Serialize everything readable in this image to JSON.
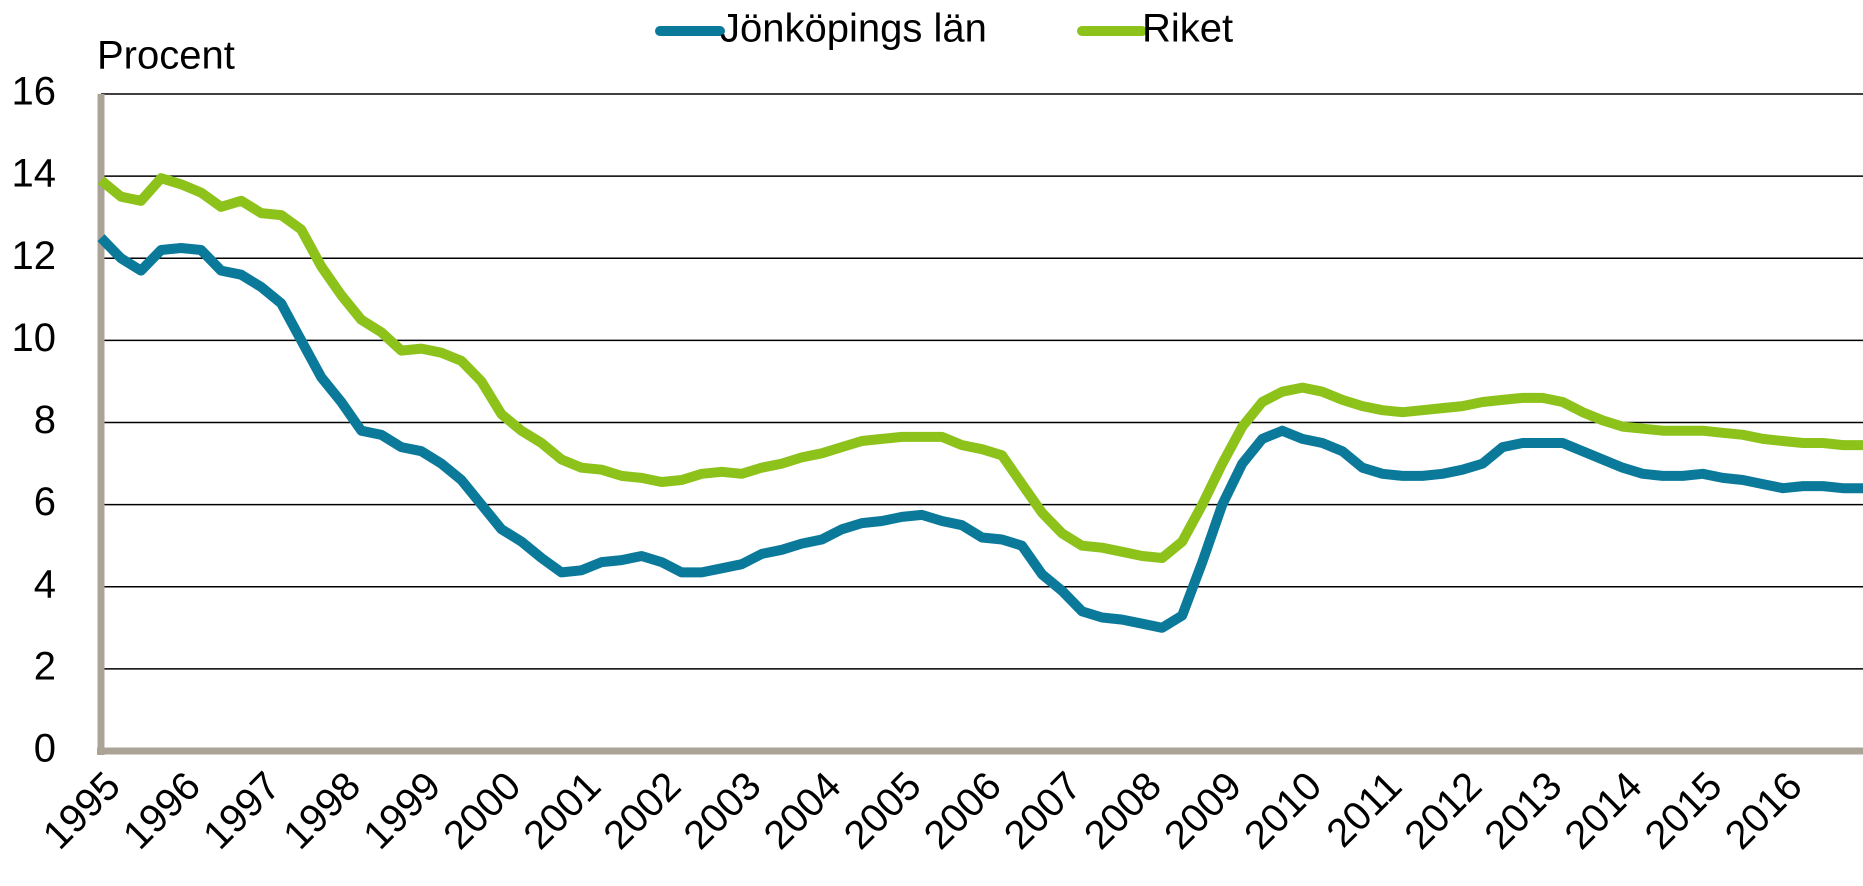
{
  "chart_data": {
    "type": "line",
    "ylabel": "Procent",
    "x": [
      1995,
      1995.25,
      1995.5,
      1995.75,
      1996,
      1996.25,
      1996.5,
      1996.75,
      1997,
      1997.25,
      1997.5,
      1997.75,
      1998,
      1998.25,
      1998.5,
      1998.75,
      1999,
      1999.25,
      1999.5,
      1999.75,
      2000,
      2000.25,
      2000.5,
      2000.75,
      2001,
      2001.25,
      2001.5,
      2001.75,
      2002,
      2002.25,
      2002.5,
      2002.75,
      2003,
      2003.25,
      2003.5,
      2003.75,
      2004,
      2004.25,
      2004.5,
      2004.75,
      2005,
      2005.25,
      2005.5,
      2005.75,
      2006,
      2006.25,
      2006.5,
      2006.75,
      2007,
      2007.25,
      2007.5,
      2007.75,
      2008,
      2008.25,
      2008.5,
      2008.75,
      2009,
      2009.25,
      2009.5,
      2009.75,
      2010,
      2010.25,
      2010.5,
      2010.75,
      2011,
      2011.25,
      2011.5,
      2011.75,
      2012,
      2012.25,
      2012.5,
      2012.75,
      2013,
      2013.25,
      2013.5,
      2013.75,
      2014,
      2014.25,
      2014.5,
      2014.75,
      2015,
      2015.25,
      2015.5,
      2015.75,
      2016,
      2016.25,
      2016.5,
      2016.75,
      2017
    ],
    "series": [
      {
        "name": "Jönköpings län",
        "color": "#0b7a9a",
        "values": [
          12.5,
          12.0,
          11.7,
          12.2,
          12.25,
          12.2,
          11.7,
          11.6,
          11.3,
          10.9,
          10.0,
          9.1,
          8.5,
          7.8,
          7.7,
          7.4,
          7.3,
          7.0,
          6.6,
          6.0,
          5.4,
          5.1,
          4.7,
          4.35,
          4.4,
          4.6,
          4.65,
          4.75,
          4.6,
          4.35,
          4.35,
          4.45,
          4.55,
          4.8,
          4.9,
          5.05,
          5.15,
          5.4,
          5.55,
          5.6,
          5.7,
          5.75,
          5.6,
          5.5,
          5.2,
          5.15,
          5.0,
          4.3,
          3.9,
          3.4,
          3.25,
          3.2,
          3.1,
          3.0,
          3.3,
          4.6,
          6.0,
          7.0,
          7.6,
          7.8,
          7.6,
          7.5,
          7.3,
          6.9,
          6.75,
          6.7,
          6.7,
          6.75,
          6.85,
          7.0,
          7.4,
          7.5,
          7.5,
          7.5,
          7.3,
          7.1,
          6.9,
          6.75,
          6.7,
          6.7,
          6.75,
          6.65,
          6.6,
          6.5,
          6.4,
          6.45,
          6.45,
          6.4,
          6.4
        ]
      },
      {
        "name": "Riket",
        "color": "#8cc21a",
        "values": [
          13.9,
          13.5,
          13.4,
          13.95,
          13.8,
          13.6,
          13.25,
          13.4,
          13.1,
          13.05,
          12.7,
          11.8,
          11.1,
          10.5,
          10.2,
          9.75,
          9.8,
          9.7,
          9.5,
          9.0,
          8.2,
          7.8,
          7.5,
          7.1,
          6.9,
          6.85,
          6.7,
          6.65,
          6.55,
          6.6,
          6.75,
          6.8,
          6.75,
          6.9,
          7.0,
          7.15,
          7.25,
          7.4,
          7.55,
          7.6,
          7.65,
          7.65,
          7.65,
          7.45,
          7.35,
          7.2,
          6.5,
          5.8,
          5.3,
          5.0,
          4.95,
          4.85,
          4.75,
          4.7,
          5.1,
          6.0,
          7.0,
          7.9,
          8.5,
          8.75,
          8.85,
          8.75,
          8.55,
          8.4,
          8.3,
          8.25,
          8.3,
          8.35,
          8.4,
          8.5,
          8.55,
          8.6,
          8.6,
          8.5,
          8.25,
          8.05,
          7.9,
          7.85,
          7.8,
          7.8,
          7.8,
          7.75,
          7.7,
          7.6,
          7.55,
          7.5,
          7.5,
          7.45,
          7.45
        ]
      }
    ],
    "xlim": [
      1995,
      2017
    ],
    "xticks": [
      1995,
      1996,
      1997,
      1998,
      1999,
      2000,
      2001,
      2002,
      2003,
      2004,
      2005,
      2006,
      2007,
      2008,
      2009,
      2010,
      2011,
      2012,
      2013,
      2014,
      2015,
      2016
    ],
    "ylim": [
      0,
      16
    ],
    "yticks": [
      0,
      2,
      4,
      6,
      8,
      10,
      12,
      14,
      16
    ],
    "grid": true,
    "legend": "top"
  }
}
